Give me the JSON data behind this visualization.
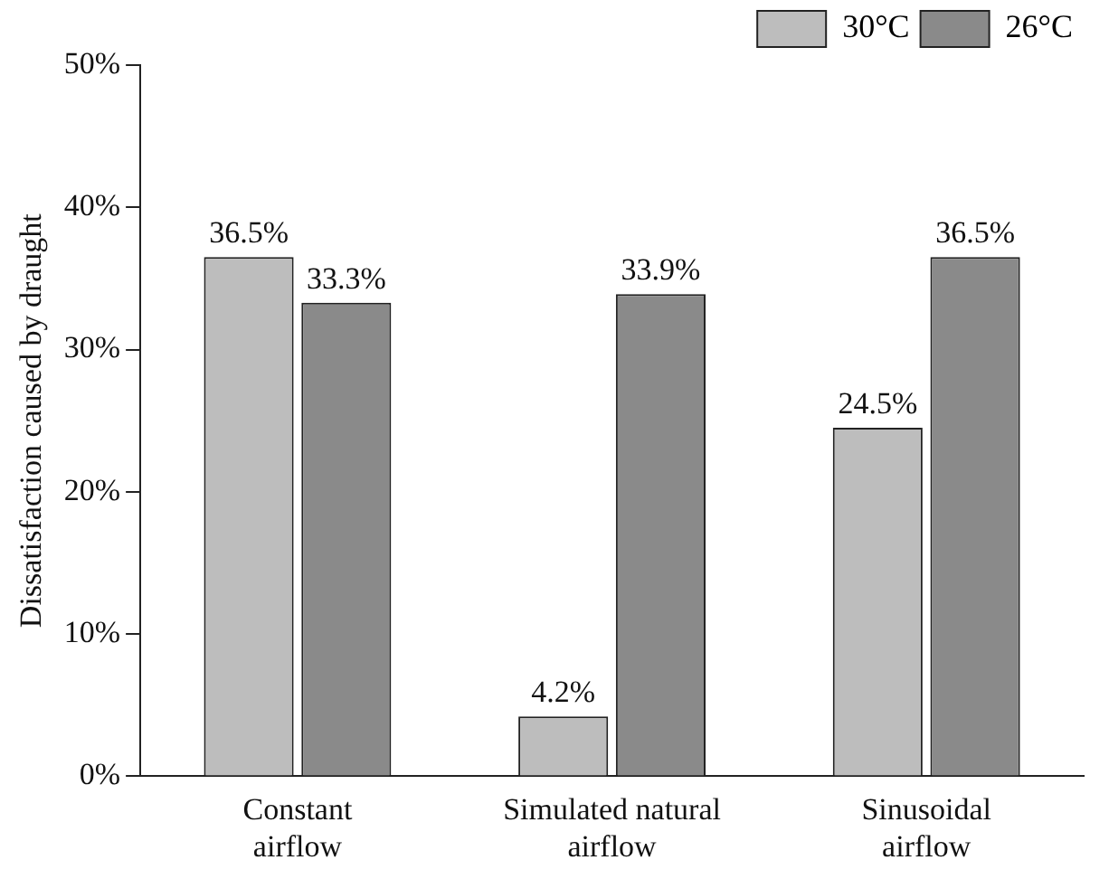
{
  "chart_data": {
    "type": "bar",
    "ylabel": "Dissatisfaction caused by draught",
    "categories": [
      "Constant airflow",
      "Simulated natural airflow",
      "Sinusoidal airflow"
    ],
    "series": [
      {
        "name": "30°C",
        "color": "#bdbdbd",
        "values": [
          36.5,
          4.2,
          24.5
        ],
        "value_labels": [
          "36.5%",
          "4.2%",
          "24.5%"
        ]
      },
      {
        "name": "26°C",
        "color": "#8a8a8a",
        "values": [
          33.3,
          33.9,
          36.5
        ],
        "value_labels": [
          "33.3%",
          "33.9%",
          "36.5%"
        ]
      }
    ],
    "ylim": [
      0,
      50
    ],
    "yticks": [
      {
        "value": 0,
        "label": "0%"
      },
      {
        "value": 10,
        "label": "10%"
      },
      {
        "value": 20,
        "label": "20%"
      },
      {
        "value": 30,
        "label": "30%"
      },
      {
        "value": 40,
        "label": "40%"
      },
      {
        "value": 50,
        "label": "50%"
      }
    ],
    "grid": false,
    "legend": "top right"
  }
}
